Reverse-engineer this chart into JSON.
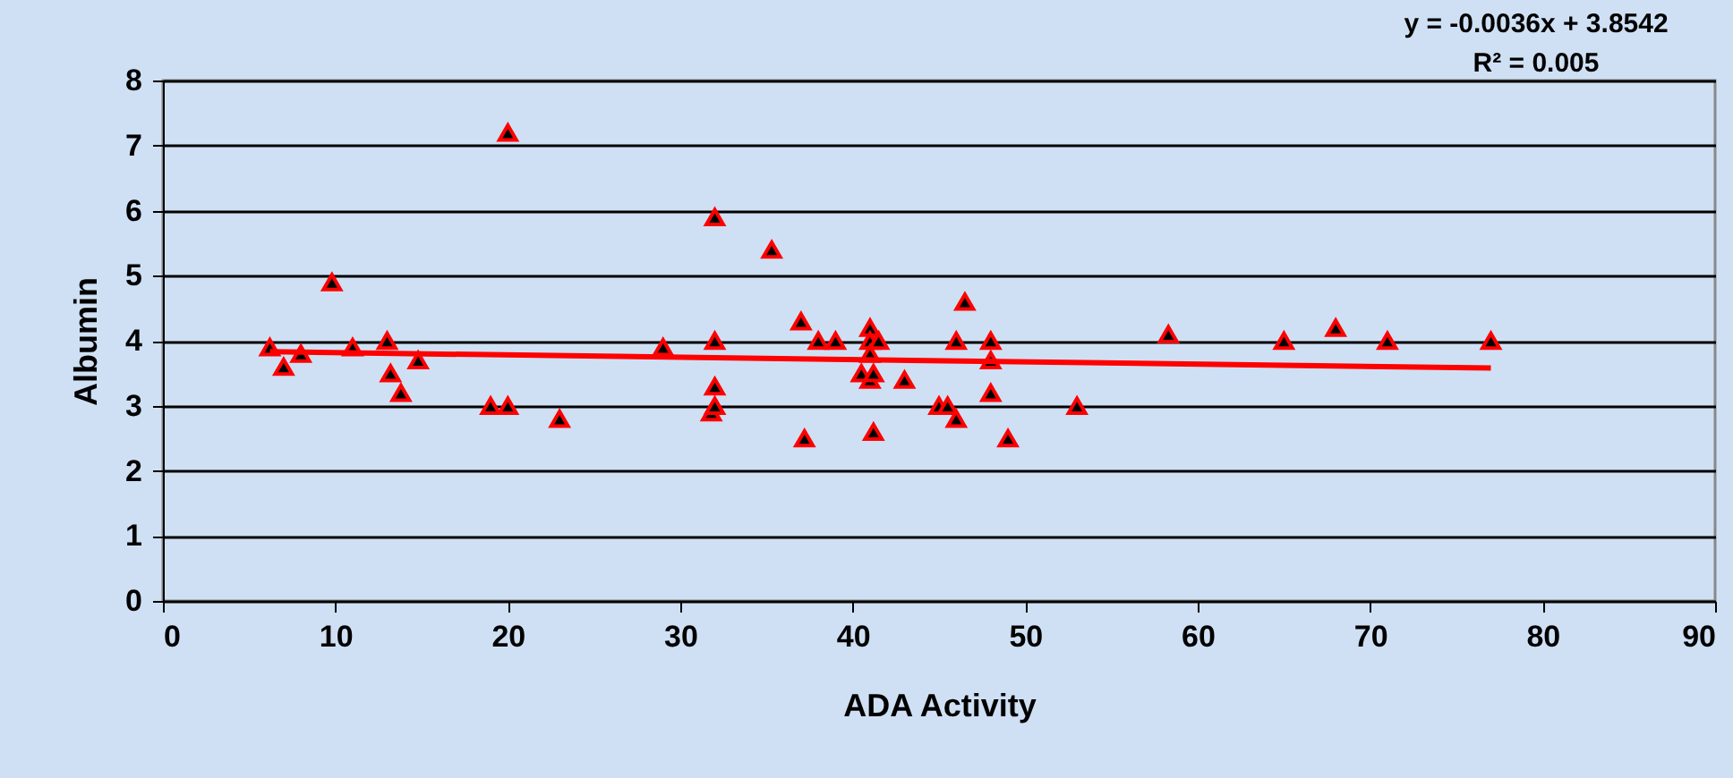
{
  "chart_data": {
    "type": "scatter",
    "xlabel": "ADA Activity",
    "ylabel": "Albumin",
    "xlim": [
      0,
      90
    ],
    "xticks": [
      0,
      10,
      20,
      30,
      40,
      50,
      60,
      70,
      80,
      90
    ],
    "ylim": [
      0,
      8
    ],
    "yticks": [
      0,
      1,
      2,
      3,
      4,
      5,
      6,
      7,
      8
    ],
    "grid": "y",
    "annotations": [
      "y = -0.0036x + 3.8542",
      "R² = 0.005"
    ],
    "series": [
      {
        "color": "#ff0000",
        "marker": "triangle",
        "x": [
          6.2,
          7,
          8,
          9.8,
          11,
          13,
          13.2,
          13.8,
          14.8,
          19,
          20,
          20,
          23,
          29,
          31.8,
          32,
          32,
          32,
          32,
          35.3,
          37,
          37.2,
          38,
          39,
          40.5,
          41,
          41,
          41,
          41,
          41.2,
          41.2,
          41.5,
          43,
          45,
          45.5,
          46,
          46,
          46.5,
          48,
          48,
          48,
          49,
          53,
          58.3,
          65,
          68,
          71,
          77
        ],
        "values": [
          3.9,
          3.6,
          3.8,
          4.9,
          3.9,
          4.0,
          3.5,
          3.2,
          3.7,
          3.0,
          3.0,
          7.2,
          2.8,
          3.9,
          2.9,
          3.0,
          3.3,
          4.0,
          5.9,
          5.4,
          4.3,
          2.5,
          4.0,
          4.0,
          3.5,
          4.2,
          4.0,
          3.8,
          3.4,
          3.5,
          2.6,
          4.0,
          3.4,
          3.0,
          3.0,
          2.8,
          4.0,
          4.6,
          4.0,
          3.2,
          3.7,
          2.5,
          3.0,
          4.1,
          4.0,
          4.2,
          4.0,
          4.0
        ]
      },
      {
        "type": "line",
        "color": "#ff0000",
        "x": [
          6.2,
          77
        ],
        "values": [
          3.83,
          3.58
        ]
      }
    ]
  }
}
